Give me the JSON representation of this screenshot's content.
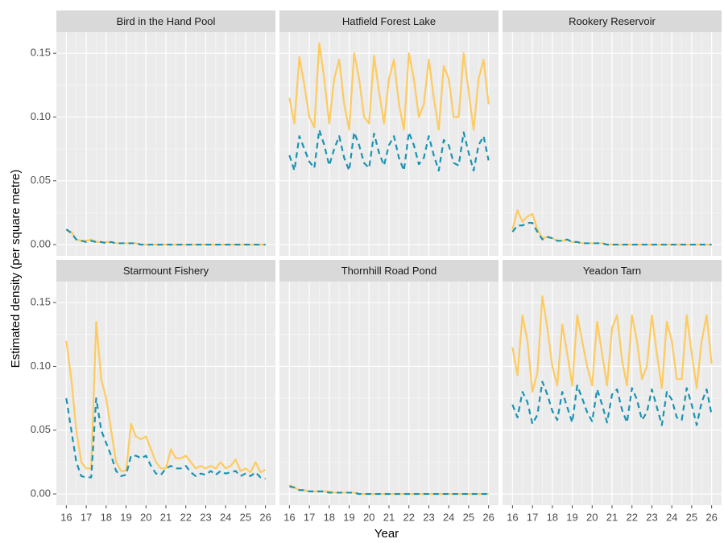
{
  "chart_data": {
    "type": "line",
    "xlabel": "Year",
    "ylabel": "Estimated density (per square metre)",
    "grid": true,
    "xlim": [
      15.5,
      26.5
    ],
    "ylim": [
      -0.0088,
      0.1665
    ],
    "xticks": [
      16,
      17,
      18,
      19,
      20,
      21,
      22,
      23,
      24,
      25,
      26
    ],
    "yticks": [
      {
        "value": 0,
        "label": "0.00"
      },
      {
        "value": 0.05,
        "label": "0.05"
      },
      {
        "value": 0.1,
        "label": "0.10"
      },
      {
        "value": 0.15,
        "label": "0.15"
      }
    ],
    "x": [
      16,
      16.25,
      16.5,
      16.75,
      17,
      17.25,
      17.5,
      17.75,
      18,
      18.25,
      18.5,
      18.75,
      19,
      19.25,
      19.5,
      19.75,
      20,
      20.25,
      20.5,
      20.75,
      21,
      21.25,
      21.5,
      21.75,
      22,
      22.25,
      22.5,
      22.75,
      23,
      23.25,
      23.5,
      23.75,
      24,
      24.25,
      24.5,
      24.75,
      25,
      25.25,
      25.5,
      25.75,
      26
    ],
    "facets": [
      {
        "title": "Bird in the Hand Pool",
        "series": [
          {
            "color": "#fdcb5f",
            "dash": "solid",
            "values": [
              0.011,
              0.01,
              0.004,
              0.003,
              0.003,
              0.004,
              0.002,
              0.002,
              0.002,
              0.002,
              0.001,
              0.001,
              0.001,
              0.001,
              0.001,
              0,
              0,
              0,
              0,
              0,
              0,
              0,
              0,
              0,
              0,
              0,
              0,
              0,
              0,
              0,
              0,
              0,
              0,
              0,
              0,
              0,
              0,
              0,
              0,
              0,
              0
            ]
          },
          {
            "color": "#1a93b2",
            "dash": "dashed",
            "values": [
              0.012,
              0.009,
              0.004,
              0.003,
              0.002,
              0.003,
              0.002,
              0.002,
              0.001,
              0.002,
              0.001,
              0.001,
              0.001,
              0.001,
              0.001,
              0,
              0,
              0,
              0,
              0,
              0,
              0,
              0,
              0,
              0,
              0,
              0,
              0,
              0,
              0,
              0,
              0,
              0,
              0,
              0,
              0,
              0,
              0,
              0,
              0,
              0
            ]
          }
        ]
      },
      {
        "title": "Hatfield Forest Lake",
        "series": [
          {
            "color": "#fdcb5f",
            "dash": "solid",
            "values": [
              0.115,
              0.095,
              0.147,
              0.125,
              0.1,
              0.092,
              0.158,
              0.13,
              0.095,
              0.13,
              0.145,
              0.11,
              0.09,
              0.15,
              0.13,
              0.1,
              0.095,
              0.148,
              0.12,
              0.095,
              0.13,
              0.145,
              0.11,
              0.09,
              0.15,
              0.13,
              0.1,
              0.11,
              0.145,
              0.115,
              0.09,
              0.14,
              0.13,
              0.1,
              0.1,
              0.15,
              0.12,
              0.09,
              0.13,
              0.145,
              0.11
            ]
          },
          {
            "color": "#1a93b2",
            "dash": "dashed",
            "values": [
              0.07,
              0.058,
              0.085,
              0.075,
              0.065,
              0.06,
              0.09,
              0.078,
              0.062,
              0.075,
              0.085,
              0.068,
              0.058,
              0.088,
              0.078,
              0.064,
              0.06,
              0.087,
              0.072,
              0.062,
              0.078,
              0.085,
              0.068,
              0.058,
              0.088,
              0.078,
              0.063,
              0.068,
              0.085,
              0.07,
              0.058,
              0.082,
              0.078,
              0.064,
              0.062,
              0.088,
              0.072,
              0.058,
              0.078,
              0.085,
              0.066
            ]
          }
        ]
      },
      {
        "title": "Rookery Reservoir",
        "series": [
          {
            "color": "#fdcb5f",
            "dash": "solid",
            "values": [
              0.012,
              0.027,
              0.018,
              0.022,
              0.024,
              0.012,
              0.005,
              0.006,
              0.005,
              0.003,
              0.003,
              0.004,
              0.002,
              0.002,
              0.001,
              0.001,
              0.001,
              0.001,
              0.001,
              0,
              0,
              0,
              0,
              0,
              0,
              0,
              0,
              0,
              0,
              0,
              0,
              0,
              0,
              0,
              0,
              0,
              0,
              0,
              0,
              0,
              0
            ]
          },
          {
            "color": "#1a93b2",
            "dash": "dashed",
            "values": [
              0.01,
              0.015,
              0.015,
              0.017,
              0.017,
              0.01,
              0.004,
              0.006,
              0.005,
              0.003,
              0.003,
              0.004,
              0.002,
              0.002,
              0.001,
              0.001,
              0.001,
              0.001,
              0.001,
              0,
              0,
              0,
              0,
              0,
              0,
              0,
              0,
              0,
              0,
              0,
              0,
              0,
              0,
              0,
              0,
              0,
              0,
              0,
              0,
              0,
              0
            ]
          }
        ]
      },
      {
        "title": "Starmount Fishery",
        "series": [
          {
            "color": "#fdcb5f",
            "dash": "solid",
            "values": [
              0.12,
              0.09,
              0.05,
              0.025,
              0.02,
              0.02,
              0.135,
              0.09,
              0.075,
              0.05,
              0.025,
              0.018,
              0.018,
              0.055,
              0.045,
              0.043,
              0.045,
              0.035,
              0.025,
              0.02,
              0.02,
              0.035,
              0.028,
              0.028,
              0.03,
              0.025,
              0.02,
              0.022,
              0.02,
              0.022,
              0.02,
              0.025,
              0.02,
              0.022,
              0.027,
              0.018,
              0.02,
              0.017,
              0.025,
              0.017,
              0.019
            ]
          },
          {
            "color": "#1a93b2",
            "dash": "dashed",
            "values": [
              0.075,
              0.05,
              0.025,
              0.014,
              0.013,
              0.013,
              0.075,
              0.05,
              0.04,
              0.03,
              0.018,
              0.014,
              0.015,
              0.03,
              0.03,
              0.028,
              0.03,
              0.022,
              0.016,
              0.015,
              0.02,
              0.022,
              0.02,
              0.02,
              0.022,
              0.017,
              0.014,
              0.016,
              0.015,
              0.018,
              0.015,
              0.018,
              0.016,
              0.017,
              0.018,
              0.014,
              0.016,
              0.014,
              0.017,
              0.013,
              0.012
            ]
          }
        ]
      },
      {
        "title": "Thornhill Road Pond",
        "series": [
          {
            "color": "#fdcb5f",
            "dash": "solid",
            "values": [
              0.007,
              0.005,
              0.003,
              0.003,
              0.002,
              0.002,
              0.002,
              0.002,
              0.002,
              0.001,
              0.001,
              0.001,
              0.001,
              0.001,
              0,
              0,
              0,
              0,
              0,
              0,
              0,
              0,
              0,
              0,
              0,
              0,
              0,
              0,
              0,
              0,
              0,
              0,
              0,
              0,
              0,
              0,
              0,
              0,
              0,
              0,
              0
            ]
          },
          {
            "color": "#1a93b2",
            "dash": "dashed",
            "values": [
              0.006,
              0.005,
              0.003,
              0.003,
              0.002,
              0.002,
              0.002,
              0.002,
              0.001,
              0.001,
              0.001,
              0.001,
              0.001,
              0.001,
              0,
              0,
              0,
              0,
              0,
              0,
              0,
              0,
              0,
              0,
              0,
              0,
              0,
              0,
              0,
              0,
              0,
              0,
              0,
              0,
              0,
              0,
              0,
              0,
              0,
              0,
              0
            ]
          }
        ]
      },
      {
        "title": "Yeadon Tarn",
        "series": [
          {
            "color": "#fdcb5f",
            "dash": "solid",
            "values": [
              0.115,
              0.093,
              0.14,
              0.12,
              0.08,
              0.095,
              0.155,
              0.13,
              0.1,
              0.085,
              0.133,
              0.11,
              0.085,
              0.14,
              0.12,
              0.1,
              0.085,
              0.135,
              0.11,
              0.085,
              0.13,
              0.14,
              0.105,
              0.085,
              0.14,
              0.12,
              0.09,
              0.1,
              0.14,
              0.11,
              0.083,
              0.135,
              0.12,
              0.09,
              0.09,
              0.14,
              0.11,
              0.083,
              0.12,
              0.14,
              0.102
            ]
          },
          {
            "color": "#1a93b2",
            "dash": "dashed",
            "values": [
              0.07,
              0.06,
              0.08,
              0.072,
              0.055,
              0.062,
              0.088,
              0.078,
              0.065,
              0.058,
              0.08,
              0.068,
              0.056,
              0.085,
              0.075,
              0.064,
              0.057,
              0.082,
              0.07,
              0.056,
              0.078,
              0.082,
              0.066,
              0.056,
              0.083,
              0.074,
              0.058,
              0.064,
              0.082,
              0.068,
              0.054,
              0.08,
              0.074,
              0.06,
              0.058,
              0.083,
              0.07,
              0.054,
              0.072,
              0.082,
              0.062
            ]
          }
        ]
      }
    ]
  }
}
